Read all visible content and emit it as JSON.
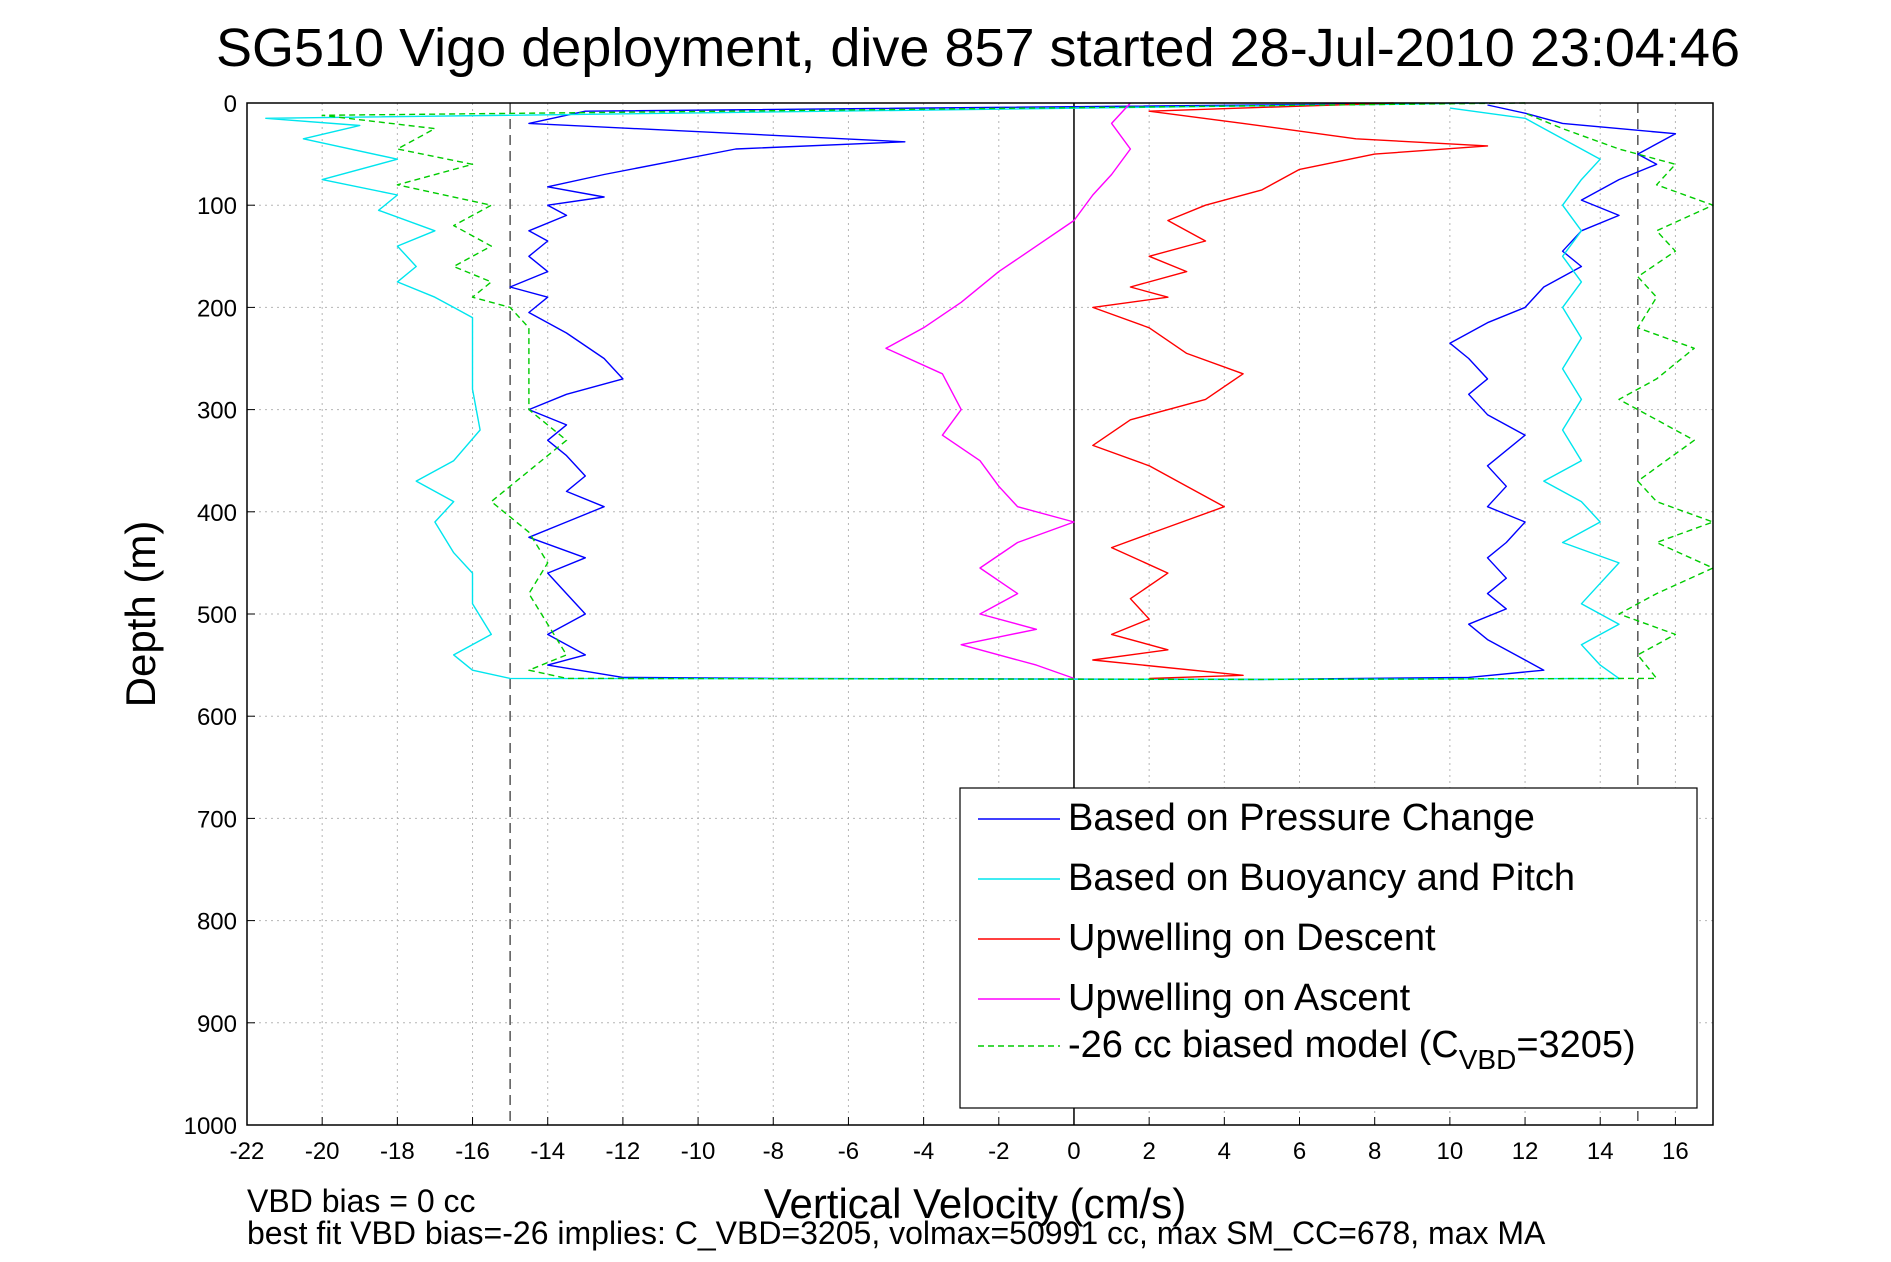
{
  "chart_data": {
    "type": "line",
    "title": "SG510 Vigo deployment, dive 857 started 28-Jul-2010 23:04:46",
    "xlabel": "Vertical Velocity (cm/s)",
    "ylabel": "Depth (m)",
    "xlim": [
      -22,
      17
    ],
    "ylim": [
      0,
      1000
    ],
    "y_reversed": true,
    "x_ticks": [
      -22,
      -20,
      -18,
      -16,
      -14,
      -12,
      -10,
      -8,
      -6,
      -4,
      -2,
      0,
      2,
      4,
      6,
      8,
      10,
      12,
      14,
      16
    ],
    "y_ticks": [
      0,
      100,
      200,
      300,
      400,
      500,
      600,
      700,
      800,
      900,
      1000
    ],
    "grid": true,
    "legend_position": "bottom-right",
    "reference_lines": [
      {
        "x": -15,
        "style": "dashed",
        "color": "#555555"
      },
      {
        "x": 15,
        "style": "dashed",
        "color": "#555555"
      },
      {
        "x": 0,
        "style": "solid",
        "color": "#000000"
      }
    ],
    "series": [
      {
        "name": "Based on Pressure Change",
        "color": "#0000ff",
        "dash": "solid",
        "points": [
          [
            10.5,
            0
          ],
          [
            -13.0,
            8
          ],
          [
            -14.5,
            20
          ],
          [
            -4.5,
            38
          ],
          [
            -9.0,
            45
          ],
          [
            -12.5,
            70
          ],
          [
            -14.0,
            82
          ],
          [
            -12.5,
            92
          ],
          [
            -14.0,
            100
          ],
          [
            -13.5,
            110
          ],
          [
            -14.5,
            125
          ],
          [
            -14.0,
            135
          ],
          [
            -14.5,
            150
          ],
          [
            -14.0,
            165
          ],
          [
            -15.0,
            180
          ],
          [
            -14.0,
            190
          ],
          [
            -14.5,
            205
          ],
          [
            -13.5,
            225
          ],
          [
            -12.5,
            250
          ],
          [
            -12.0,
            270
          ],
          [
            -13.5,
            285
          ],
          [
            -14.5,
            300
          ],
          [
            -13.5,
            315
          ],
          [
            -14.0,
            330
          ],
          [
            -13.5,
            345
          ],
          [
            -13.0,
            365
          ],
          [
            -13.5,
            380
          ],
          [
            -12.5,
            395
          ],
          [
            -13.5,
            410
          ],
          [
            -14.5,
            425
          ],
          [
            -13.0,
            445
          ],
          [
            -14.0,
            460
          ],
          [
            -13.5,
            480
          ],
          [
            -13.0,
            500
          ],
          [
            -14.0,
            520
          ],
          [
            -13.0,
            540
          ],
          [
            -14.0,
            550
          ],
          [
            -12.0,
            562
          ],
          [
            -8.0,
            563
          ],
          [
            5.0,
            564
          ],
          [
            10.5,
            562
          ],
          [
            12.5,
            555
          ],
          [
            12.0,
            545
          ],
          [
            11.0,
            525
          ],
          [
            10.5,
            510
          ],
          [
            11.5,
            495
          ],
          [
            11.0,
            480
          ],
          [
            11.5,
            465
          ],
          [
            11.0,
            445
          ],
          [
            11.5,
            430
          ],
          [
            12.0,
            410
          ],
          [
            11.0,
            395
          ],
          [
            11.5,
            375
          ],
          [
            11.0,
            355
          ],
          [
            12.0,
            325
          ],
          [
            11.0,
            305
          ],
          [
            10.5,
            285
          ],
          [
            11.0,
            270
          ],
          [
            10.5,
            250
          ],
          [
            10.0,
            235
          ],
          [
            11.0,
            215
          ],
          [
            12.0,
            200
          ],
          [
            12.5,
            180
          ],
          [
            13.5,
            160
          ],
          [
            13.0,
            145
          ],
          [
            13.5,
            125
          ],
          [
            14.5,
            110
          ],
          [
            13.5,
            95
          ],
          [
            14.5,
            75
          ],
          [
            15.5,
            60
          ],
          [
            15.0,
            50
          ],
          [
            16.0,
            30
          ],
          [
            14.5,
            25
          ],
          [
            13.0,
            20
          ],
          [
            12.0,
            10
          ],
          [
            11.0,
            2
          ]
        ]
      },
      {
        "name": "Based on Buoyancy and Pitch",
        "color": "#00e5ee",
        "dash": "solid",
        "points": [
          [
            11.0,
            0
          ],
          [
            -21.5,
            15
          ],
          [
            -19.0,
            22
          ],
          [
            -20.5,
            35
          ],
          [
            -18.0,
            55
          ],
          [
            -20.0,
            75
          ],
          [
            -18.0,
            90
          ],
          [
            -18.5,
            105
          ],
          [
            -17.0,
            125
          ],
          [
            -18.0,
            140
          ],
          [
            -17.5,
            160
          ],
          [
            -18.0,
            175
          ],
          [
            -17.0,
            190
          ],
          [
            -16.5,
            200
          ],
          [
            -16.0,
            210
          ],
          [
            -16.0,
            240
          ],
          [
            -16.0,
            280
          ],
          [
            -15.8,
            320
          ],
          [
            -16.5,
            350
          ],
          [
            -17.5,
            370
          ],
          [
            -16.5,
            390
          ],
          [
            -17.0,
            410
          ],
          [
            -16.5,
            440
          ],
          [
            -16.0,
            460
          ],
          [
            -16.0,
            490
          ],
          [
            -15.5,
            520
          ],
          [
            -16.5,
            540
          ],
          [
            -16.0,
            555
          ],
          [
            -15.0,
            563
          ],
          [
            5.0,
            564
          ],
          [
            14.5,
            563
          ],
          [
            14.0,
            550
          ],
          [
            13.5,
            530
          ],
          [
            14.5,
            510
          ],
          [
            13.5,
            490
          ],
          [
            14.0,
            470
          ],
          [
            14.5,
            450
          ],
          [
            13.0,
            430
          ],
          [
            14.0,
            410
          ],
          [
            13.5,
            390
          ],
          [
            12.5,
            370
          ],
          [
            13.5,
            350
          ],
          [
            13.0,
            320
          ],
          [
            13.5,
            290
          ],
          [
            13.0,
            260
          ],
          [
            13.5,
            230
          ],
          [
            13.0,
            200
          ],
          [
            13.5,
            175
          ],
          [
            13.0,
            150
          ],
          [
            13.5,
            125
          ],
          [
            13.0,
            100
          ],
          [
            13.5,
            75
          ],
          [
            14.0,
            55
          ],
          [
            13.0,
            35
          ],
          [
            12.0,
            15
          ],
          [
            10.0,
            5
          ]
        ]
      },
      {
        "name": "Upwelling on Descent",
        "color": "#ff0000",
        "dash": "solid",
        "points": [
          [
            8.5,
            0
          ],
          [
            2.0,
            8
          ],
          [
            4.5,
            20
          ],
          [
            7.5,
            35
          ],
          [
            11.0,
            42
          ],
          [
            8.0,
            50
          ],
          [
            6.0,
            65
          ],
          [
            5.0,
            85
          ],
          [
            3.5,
            100
          ],
          [
            2.5,
            115
          ],
          [
            3.5,
            135
          ],
          [
            2.0,
            150
          ],
          [
            3.0,
            165
          ],
          [
            1.5,
            180
          ],
          [
            2.5,
            190
          ],
          [
            0.5,
            200
          ],
          [
            2.0,
            220
          ],
          [
            3.0,
            245
          ],
          [
            4.5,
            265
          ],
          [
            3.5,
            290
          ],
          [
            1.5,
            310
          ],
          [
            0.5,
            335
          ],
          [
            2.0,
            355
          ],
          [
            3.0,
            375
          ],
          [
            4.0,
            395
          ],
          [
            2.5,
            415
          ],
          [
            1.0,
            435
          ],
          [
            2.5,
            460
          ],
          [
            1.5,
            485
          ],
          [
            2.0,
            505
          ],
          [
            1.0,
            520
          ],
          [
            2.5,
            535
          ],
          [
            0.5,
            545
          ],
          [
            4.5,
            560
          ],
          [
            2.0,
            563
          ]
        ]
      },
      {
        "name": "Upwelling on Ascent",
        "color": "#ff00ff",
        "dash": "solid",
        "points": [
          [
            1.5,
            0
          ],
          [
            1.0,
            20
          ],
          [
            1.5,
            45
          ],
          [
            1.0,
            70
          ],
          [
            0.5,
            90
          ],
          [
            0.0,
            115
          ],
          [
            -1.0,
            140
          ],
          [
            -2.0,
            165
          ],
          [
            -3.0,
            195
          ],
          [
            -4.0,
            220
          ],
          [
            -5.0,
            240
          ],
          [
            -3.5,
            265
          ],
          [
            -3.0,
            300
          ],
          [
            -3.5,
            325
          ],
          [
            -2.5,
            350
          ],
          [
            -2.0,
            375
          ],
          [
            -1.5,
            395
          ],
          [
            0.0,
            410
          ],
          [
            -1.5,
            430
          ],
          [
            -2.5,
            455
          ],
          [
            -1.5,
            480
          ],
          [
            -2.5,
            500
          ],
          [
            -1.0,
            515
          ],
          [
            -3.0,
            530
          ],
          [
            -1.0,
            550
          ],
          [
            0.0,
            563
          ]
        ]
      },
      {
        "name": "-26 cc biased model (C_VBD=3205)",
        "color": "#00cc00",
        "dash": "dashed",
        "points": [
          [
            12.0,
            0
          ],
          [
            -20.0,
            12
          ],
          [
            -17.0,
            25
          ],
          [
            -18.0,
            45
          ],
          [
            -16.0,
            60
          ],
          [
            -18.0,
            80
          ],
          [
            -15.5,
            100
          ],
          [
            -16.5,
            120
          ],
          [
            -15.5,
            140
          ],
          [
            -16.5,
            160
          ],
          [
            -15.5,
            175
          ],
          [
            -16.0,
            190
          ],
          [
            -15.0,
            200
          ],
          [
            -14.5,
            220
          ],
          [
            -14.5,
            260
          ],
          [
            -14.5,
            300
          ],
          [
            -13.5,
            330
          ],
          [
            -14.5,
            360
          ],
          [
            -15.5,
            390
          ],
          [
            -14.5,
            420
          ],
          [
            -14.0,
            450
          ],
          [
            -14.5,
            480
          ],
          [
            -14.0,
            510
          ],
          [
            -13.5,
            540
          ],
          [
            -14.5,
            555
          ],
          [
            -13.5,
            563
          ],
          [
            5.0,
            564
          ],
          [
            15.5,
            563
          ],
          [
            15.0,
            540
          ],
          [
            16.0,
            520
          ],
          [
            14.5,
            500
          ],
          [
            15.5,
            480
          ],
          [
            17.0,
            455
          ],
          [
            15.5,
            430
          ],
          [
            17.0,
            410
          ],
          [
            15.5,
            390
          ],
          [
            15.0,
            370
          ],
          [
            16.5,
            330
          ],
          [
            15.5,
            310
          ],
          [
            14.5,
            290
          ],
          [
            15.5,
            270
          ],
          [
            16.5,
            240
          ],
          [
            15.0,
            220
          ],
          [
            15.5,
            190
          ],
          [
            15.0,
            170
          ],
          [
            16.0,
            145
          ],
          [
            15.5,
            125
          ],
          [
            17.0,
            100
          ],
          [
            15.5,
            80
          ],
          [
            16.0,
            60
          ],
          [
            14.5,
            45
          ],
          [
            13.0,
            25
          ],
          [
            12.0,
            10
          ]
        ]
      }
    ],
    "legend_items": [
      {
        "label": "Based on Pressure Change",
        "color": "#0000ff",
        "dash": "solid"
      },
      {
        "label": "Based on Buoyancy and Pitch",
        "color": "#00e5ee",
        "dash": "solid"
      },
      {
        "label": "Upwelling on Descent",
        "color": "#ff0000",
        "dash": "solid"
      },
      {
        "label": "Upwelling on Ascent",
        "color": "#ff00ff",
        "dash": "solid"
      },
      {
        "label": "-26 cc biased model (C",
        "sub": "VBD",
        "tail": "=3205)",
        "color": "#00cc00",
        "dash": "dashed"
      }
    ],
    "annotations": [
      "VBD bias = 0 cc",
      "best fit VBD bias=-26 implies: C_VBD=3205, volmax=50991 cc, max SM_CC=678, max MA"
    ]
  }
}
